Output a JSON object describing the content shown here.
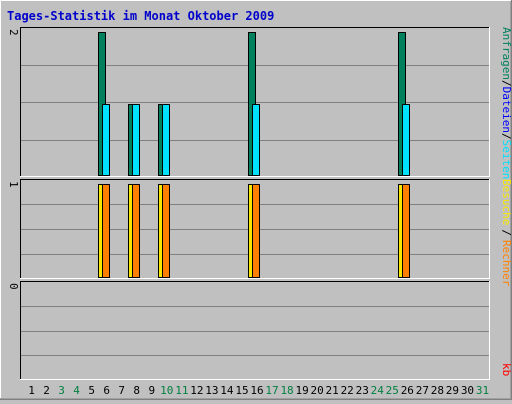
{
  "title": "Tages-Statistik im Monat Oktober 2009",
  "colors": {
    "background": "#c0c0c0",
    "title": "#0000cc",
    "anfragen": "#00805c",
    "dateien": "#0000ff",
    "seiten": "#00e0ff",
    "besuche": "#f8e800",
    "rechner": "#ff8000",
    "kb": "#ff0000",
    "weekend": "#008040",
    "weekday": "#000000"
  },
  "legend": {
    "anfragen": "Anfragen",
    "dateien": "Dateien",
    "seiten": "Seiten",
    "besuche": "Besuche",
    "rechner": "Rechner",
    "kb": "kb",
    "sep": "/"
  },
  "chart_data": {
    "type": "bar",
    "title": "Tages-Statistik im Monat Oktober 2009",
    "x": [
      1,
      2,
      3,
      4,
      5,
      6,
      7,
      8,
      9,
      10,
      11,
      12,
      13,
      14,
      15,
      16,
      17,
      18,
      19,
      20,
      21,
      22,
      23,
      24,
      25,
      26,
      27,
      28,
      29,
      30,
      31
    ],
    "x_labels": [
      "1",
      "2",
      "3",
      "4",
      "5",
      "6",
      "7",
      "8",
      "9",
      "10",
      "11",
      "12",
      "13",
      "14",
      "15",
      "16",
      "17",
      "18",
      "19",
      "20",
      "21",
      "22",
      "23",
      "24",
      "25",
      "26",
      "27",
      "28",
      "29",
      "30",
      "31"
    ],
    "weekend_days": [
      3,
      4,
      10,
      11,
      17,
      18,
      24,
      25,
      31
    ],
    "panels": [
      {
        "name": "requests",
        "ymax_label": "2",
        "ymax": 2,
        "series": [
          {
            "name": "Anfragen",
            "values": [
              0,
              0,
              0,
              0,
              0,
              2,
              0,
              1,
              0,
              1,
              0,
              0,
              0,
              0,
              0,
              2,
              0,
              0,
              0,
              0,
              0,
              0,
              0,
              0,
              0,
              2,
              0,
              0,
              0,
              0,
              0
            ]
          },
          {
            "name": "Seiten",
            "values": [
              0,
              0,
              0,
              0,
              0,
              1,
              0,
              1,
              0,
              1,
              0,
              0,
              0,
              0,
              0,
              1,
              0,
              0,
              0,
              0,
              0,
              0,
              0,
              0,
              0,
              1,
              0,
              0,
              0,
              0,
              0
            ]
          }
        ]
      },
      {
        "name": "visits",
        "ymax_label": "1",
        "ymax": 1,
        "series": [
          {
            "name": "Besuche",
            "values": [
              0,
              0,
              0,
              0,
              0,
              1,
              0,
              1,
              0,
              1,
              0,
              0,
              0,
              0,
              0,
              1,
              0,
              0,
              0,
              0,
              0,
              0,
              0,
              0,
              0,
              1,
              0,
              0,
              0,
              0,
              0
            ]
          },
          {
            "name": "Rechner",
            "values": [
              0,
              0,
              0,
              0,
              0,
              1,
              0,
              1,
              0,
              1,
              0,
              0,
              0,
              0,
              0,
              1,
              0,
              0,
              0,
              0,
              0,
              0,
              0,
              0,
              0,
              1,
              0,
              0,
              0,
              0,
              0
            ]
          }
        ]
      },
      {
        "name": "kbytes",
        "ymax_label": "0",
        "ymax": 0,
        "series": [
          {
            "name": "kb",
            "values": [
              0,
              0,
              0,
              0,
              0,
              0,
              0,
              0,
              0,
              0,
              0,
              0,
              0,
              0,
              0,
              0,
              0,
              0,
              0,
              0,
              0,
              0,
              0,
              0,
              0,
              0,
              0,
              0,
              0,
              0,
              0
            ]
          }
        ]
      }
    ]
  }
}
